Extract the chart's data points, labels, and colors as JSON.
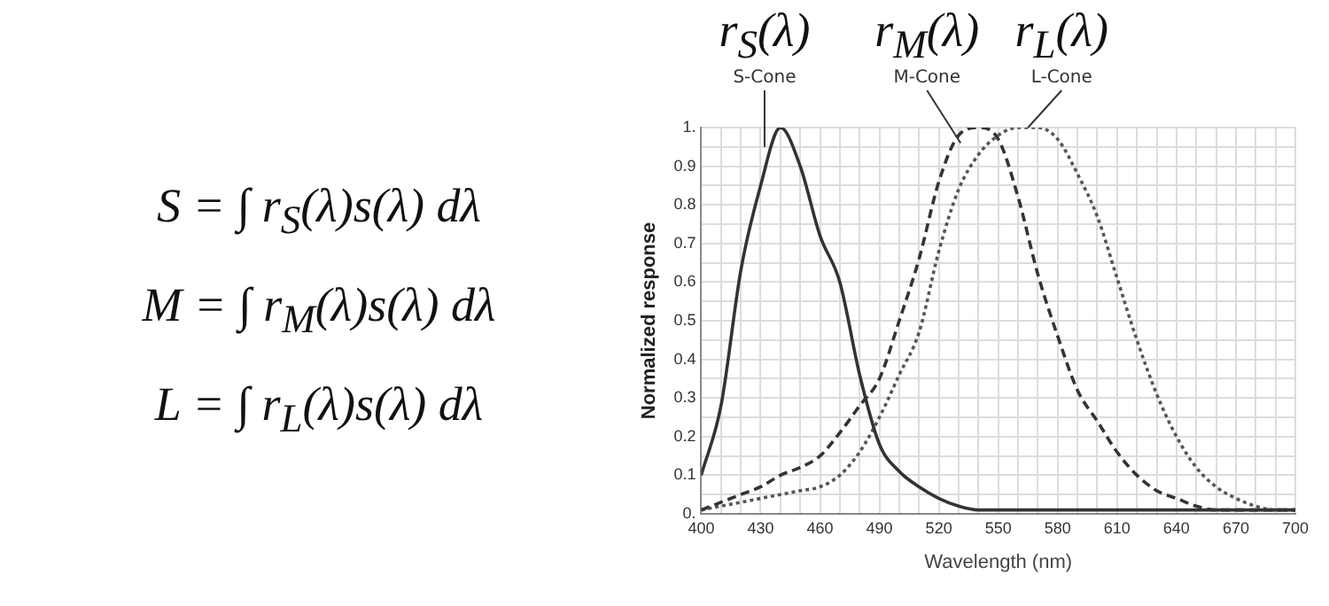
{
  "chart_data": {
    "type": "line",
    "xlabel": "Wavelength (nm)",
    "ylabel": "Normalized response",
    "annotations": [
      "S = ∫ r$_{S}$(λ)s(λ) dλ",
      "M = ∫ r$_{M}$(λ)s(λ) dλ",
      "L = ∫ r$_{L}$(λ)s(λ) dλ",
      {
        "text": "r$_{S}$(λ)",
        "x": 432,
        "y": 0.95
      },
      {
        "text": "r$_{M}$(λ)",
        "x": 531,
        "y": 0.96
      },
      {
        "text": "r$_{L}$(λ)",
        "x": 565,
        "y": 1.0
      }
    ],
    "x": [
      400,
      410,
      420,
      430,
      440,
      450,
      460,
      470,
      480,
      490,
      500,
      510,
      520,
      530,
      540,
      550,
      560,
      570,
      580,
      590,
      600,
      610,
      620,
      630,
      640,
      650,
      660,
      670,
      680,
      690,
      700
    ],
    "series": [
      {
        "name": "S-Cone",
        "color": "#333333",
        "line_style": "solid",
        "values": [
          0.1,
          0.28,
          0.63,
          0.85,
          1.0,
          0.9,
          0.72,
          0.6,
          0.36,
          0.18,
          0.11,
          0.07,
          0.04,
          0.02,
          0.01,
          0.01,
          0.01,
          0.01,
          0.01,
          0.01,
          0.01,
          0.01,
          0.01,
          0.01,
          0.01,
          0.01,
          0.01,
          0.01,
          0.01,
          0.01,
          0.01
        ]
      },
      {
        "name": "M-Cone",
        "color": "#333333",
        "line_style": "dashed",
        "values": [
          0.01,
          0.03,
          0.05,
          0.07,
          0.1,
          0.12,
          0.15,
          0.21,
          0.28,
          0.35,
          0.5,
          0.66,
          0.86,
          0.98,
          1.0,
          0.97,
          0.82,
          0.62,
          0.46,
          0.32,
          0.24,
          0.16,
          0.1,
          0.06,
          0.04,
          0.02,
          0.01,
          0.01,
          0.01,
          0.01,
          0.01
        ]
      },
      {
        "name": "L-Cone",
        "color": "#555555",
        "line_style": "dotted",
        "values": [
          0.01,
          0.02,
          0.03,
          0.04,
          0.05,
          0.06,
          0.07,
          0.1,
          0.16,
          0.25,
          0.36,
          0.47,
          0.68,
          0.84,
          0.93,
          0.98,
          1.0,
          1.0,
          0.97,
          0.88,
          0.77,
          0.61,
          0.45,
          0.31,
          0.2,
          0.12,
          0.07,
          0.04,
          0.02,
          0.01,
          0.01
        ]
      }
    ],
    "xlim": [
      400,
      700
    ],
    "xticks": [
      400,
      {
        "value": 410,
        "label": null
      },
      {
        "value": 420,
        "label": null
      },
      430,
      {
        "value": 440,
        "label": null
      },
      {
        "value": 450,
        "label": null
      },
      460,
      {
        "value": 470,
        "label": null
      },
      {
        "value": 480,
        "label": null
      },
      490,
      {
        "value": 500,
        "label": null
      },
      {
        "value": 510,
        "label": null
      },
      520,
      {
        "value": 530,
        "label": null
      },
      {
        "value": 540,
        "label": null
      },
      550,
      {
        "value": 560,
        "label": null
      },
      {
        "value": 570,
        "label": null
      },
      580,
      {
        "value": 590,
        "label": null
      },
      {
        "value": 600,
        "label": null
      },
      610,
      {
        "value": 620,
        "label": null
      },
      {
        "value": 630,
        "label": null
      },
      640,
      {
        "value": 650,
        "label": null
      },
      {
        "value": 660,
        "label": null
      },
      670,
      {
        "value": 680,
        "label": null
      },
      {
        "value": 690,
        "label": null
      },
      700
    ],
    "ylim": [
      0,
      1
    ],
    "yticks": [
      {
        "value": 0,
        "label": "0."
      },
      {
        "value": 0.05,
        "label": null
      },
      0.1,
      {
        "value": 0.15,
        "label": null
      },
      0.2,
      {
        "value": 0.25,
        "label": null
      },
      0.3,
      {
        "value": 0.35,
        "label": null
      },
      0.4,
      {
        "value": 0.45,
        "label": null
      },
      0.5,
      {
        "value": 0.55,
        "label": null
      },
      0.6,
      {
        "value": 0.65,
        "label": null
      },
      0.7,
      {
        "value": 0.75,
        "label": null
      },
      0.8,
      {
        "value": 0.85,
        "label": null
      },
      0.9,
      {
        "value": 0.95,
        "label": null
      },
      {
        "value": 1,
        "label": "1."
      }
    ],
    "grid": true,
    "marker": "none"
  }
}
